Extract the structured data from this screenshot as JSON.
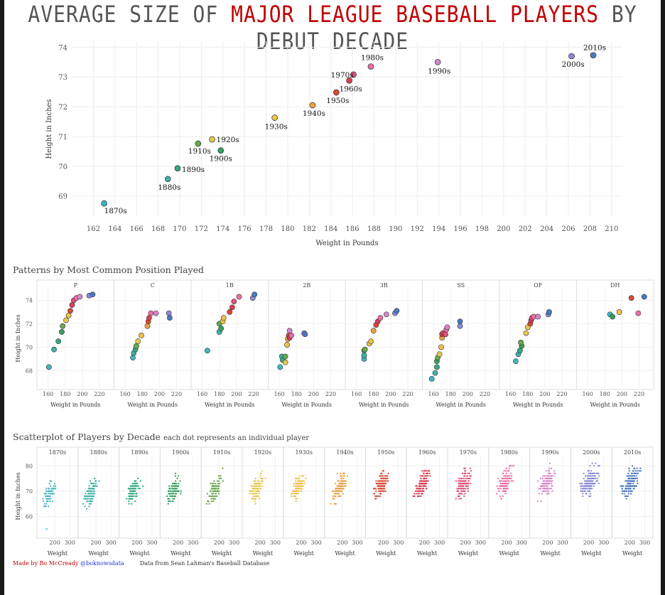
{
  "title": {
    "part1": "AVERAGE SIZE OF ",
    "part2": "MAJOR LEAGUE BASEBALL PLAYERS",
    "part3": " BY DEBUT DECADE"
  },
  "colors": {
    "1870s": "#43b4bf",
    "1880s": "#3fb0a5",
    "1890s": "#35a882",
    "1900s": "#36a160",
    "1910s": "#6aa84f",
    "1920s": "#e3c84f",
    "1930s": "#f0c04a",
    "1940s": "#eca144",
    "1950s": "#d94a37",
    "1960s": "#d93f56",
    "1970s": "#e0507a",
    "1980s": "#e870a5",
    "1990s": "#d586c6",
    "2000s": "#8a8ad6",
    "2010s": "#4c78c4"
  },
  "chart_data": [
    {
      "type": "scatter",
      "title": "Average size of major league baseball players by debut decade",
      "xlabel": "Weight in Pounds",
      "ylabel": "Height in Inches",
      "xlim": [
        160,
        211
      ],
      "ylim": [
        68.3,
        74.2
      ],
      "xticks": [
        162,
        164,
        166,
        168,
        170,
        172,
        174,
        176,
        178,
        180,
        182,
        184,
        186,
        188,
        190,
        192,
        194,
        196,
        198,
        200,
        202,
        204,
        206,
        208,
        210
      ],
      "yticks": [
        69,
        70,
        71,
        72,
        73,
        74
      ],
      "points": [
        {
          "label": "1870s",
          "x": 163.0,
          "y": 68.75
        },
        {
          "label": "1880s",
          "x": 168.9,
          "y": 69.57
        },
        {
          "label": "1890s",
          "x": 169.8,
          "y": 69.93
        },
        {
          "label": "1900s",
          "x": 173.8,
          "y": 70.53
        },
        {
          "label": "1910s",
          "x": 171.7,
          "y": 70.76
        },
        {
          "label": "1920s",
          "x": 173.0,
          "y": 70.9
        },
        {
          "label": "1930s",
          "x": 178.8,
          "y": 71.63
        },
        {
          "label": "1940s",
          "x": 182.3,
          "y": 72.05
        },
        {
          "label": "1950s",
          "x": 184.5,
          "y": 72.48
        },
        {
          "label": "1960s",
          "x": 185.7,
          "y": 72.88
        },
        {
          "label": "1970s",
          "x": 186.1,
          "y": 73.08
        },
        {
          "label": "1980s",
          "x": 187.7,
          "y": 73.35
        },
        {
          "label": "1990s",
          "x": 193.9,
          "y": 73.5
        },
        {
          "label": "2000s",
          "x": 206.3,
          "y": 73.7
        },
        {
          "label": "2010s",
          "x": 208.3,
          "y": 73.73
        }
      ]
    },
    {
      "type": "scatter",
      "title": "Patterns by Most Common Position Played",
      "xlabel": "Weight in Pounds",
      "ylabel": "Height in Inches",
      "xlim": [
        152,
        232
      ],
      "ylim": [
        66.5,
        75
      ],
      "xticks": [
        160,
        180,
        200,
        220
      ],
      "yticks": [
        68,
        70,
        72,
        74
      ],
      "panels": [
        {
          "name": "P",
          "points": [
            [
              161,
              68.3
            ],
            [
              167,
              69.8
            ],
            [
              172,
              70.5
            ],
            [
              176,
              71.3
            ],
            [
              177,
              71.8
            ],
            [
              181,
              72.3
            ],
            [
              184,
              72.7
            ],
            [
              186,
              73.1
            ],
            [
              188,
              73.6
            ],
            [
              190,
              74.0
            ],
            [
              193,
              74.2
            ],
            [
              197,
              74.3
            ],
            [
              208,
              74.4
            ],
            [
              212,
              74.5
            ]
          ]
        },
        {
          "name": "C",
          "points": [
            [
              169,
              69.1
            ],
            [
              170,
              69.5
            ],
            [
              172,
              69.8
            ],
            [
              173,
              70.1
            ],
            [
              175,
              70.5
            ],
            [
              179,
              71.0
            ],
            [
              186,
              71.8
            ],
            [
              187,
              72.2
            ],
            [
              188,
              72.5
            ],
            [
              190,
              72.9
            ],
            [
              196,
              72.9
            ],
            [
              211,
              72.9
            ],
            [
              212,
              72.5
            ]
          ]
        },
        {
          "name": "1B",
          "points": [
            [
              166,
              69.7
            ],
            [
              180,
              71.3
            ],
            [
              182,
              71.6
            ],
            [
              180,
              72.0
            ],
            [
              184,
              72.2
            ],
            [
              185,
              72.5
            ],
            [
              192,
              73.0
            ],
            [
              195,
              73.4
            ],
            [
              197,
              73.9
            ],
            [
              203,
              74.3
            ],
            [
              219,
              74.2
            ],
            [
              221,
              74.5
            ]
          ]
        },
        {
          "name": "2B",
          "points": [
            [
              161,
              68.3
            ],
            [
              163,
              69.2
            ],
            [
              164,
              68.9
            ],
            [
              167,
              69.2
            ],
            [
              167,
              68.7
            ],
            [
              169,
              70.2
            ],
            [
              170,
              70.7
            ],
            [
              171,
              71.0
            ],
            [
              172,
              70.8
            ],
            [
              174,
              71.0
            ],
            [
              172,
              71.4
            ],
            [
              189,
              71.2
            ],
            [
              190,
              71.1
            ]
          ]
        },
        {
          "name": "3B",
          "points": [
            [
              169,
              69.0
            ],
            [
              169,
              69.3
            ],
            [
              169,
              69.7
            ],
            [
              170,
              69.8
            ],
            [
              175,
              70.3
            ],
            [
              177,
              70.5
            ],
            [
              180,
              71.4
            ],
            [
              183,
              71.9
            ],
            [
              185,
              72.2
            ],
            [
              188,
              72.5
            ],
            [
              195,
              72.8
            ],
            [
              205,
              72.9
            ],
            [
              207,
              73.1
            ]
          ]
        },
        {
          "name": "SS",
          "points": [
            [
              158,
              67.3
            ],
            [
              162,
              67.8
            ],
            [
              164,
              68.3
            ],
            [
              164,
              68.8
            ],
            [
              165,
              69.1
            ],
            [
              167,
              69.4
            ],
            [
              169,
              70.0
            ],
            [
              170,
              70.8
            ],
            [
              170,
              71.1
            ],
            [
              171,
              71.2
            ],
            [
              174,
              71.1
            ],
            [
              175,
              71.5
            ],
            [
              176,
              71.7
            ],
            [
              191,
              71.8
            ],
            [
              191,
              72.2
            ]
          ]
        },
        {
          "name": "OF",
          "points": [
            [
              166,
              68.8
            ],
            [
              169,
              69.4
            ],
            [
              171,
              69.7
            ],
            [
              173,
              70.1
            ],
            [
              172,
              70.4
            ],
            [
              178,
              71.2
            ],
            [
              180,
              71.7
            ],
            [
              183,
              72.0
            ],
            [
              184,
              72.3
            ],
            [
              185,
              72.5
            ],
            [
              187,
              72.6
            ],
            [
              192,
              72.6
            ],
            [
              204,
              72.8
            ],
            [
              205,
              73.0
            ]
          ]
        },
        {
          "name": "DH",
          "points": [
            [
              186,
              72.8
            ],
            [
              189,
              72.6
            ],
            [
              197,
              73.0
            ],
            [
              211,
              74.2
            ],
            [
              219,
              72.9
            ],
            [
              226,
              74.3
            ]
          ]
        }
      ]
    },
    {
      "type": "scatter",
      "title": "Scatterplot of Players by Decade",
      "subtitle": "each dot represents an individual player",
      "xlabel": "Weight",
      "ylabel": "Height in Inches",
      "xlim": [
        95,
        340
      ],
      "ylim": [
        52,
        84
      ],
      "xticks": [
        200,
        300
      ],
      "yticks": [
        60,
        70,
        80
      ],
      "panels": [
        {
          "name": "1870s",
          "center": [
            163,
            68.8
          ],
          "spread": [
            18,
            2.2
          ],
          "n": 80,
          "outlier": [
            145,
            55
          ]
        },
        {
          "name": "1880s",
          "center": [
            169,
            69.6
          ],
          "spread": [
            20,
            2.3
          ],
          "n": 110
        },
        {
          "name": "1890s",
          "center": [
            170,
            69.9
          ],
          "spread": [
            20,
            2.3
          ],
          "n": 110
        },
        {
          "name": "1900s",
          "center": [
            174,
            70.5
          ],
          "spread": [
            20,
            2.4
          ],
          "n": 110
        },
        {
          "name": "1910s",
          "center": [
            172,
            70.8
          ],
          "spread": [
            20,
            2.5
          ],
          "n": 110
        },
        {
          "name": "1920s",
          "center": [
            173,
            70.9
          ],
          "spread": [
            20,
            2.5
          ],
          "n": 110
        },
        {
          "name": "1930s",
          "center": [
            179,
            71.6
          ],
          "spread": [
            20,
            2.5
          ],
          "n": 110
        },
        {
          "name": "1940s",
          "center": [
            182,
            72.0
          ],
          "spread": [
            21,
            2.5
          ],
          "n": 120
        },
        {
          "name": "1950s",
          "center": [
            184,
            72.5
          ],
          "spread": [
            22,
            2.6
          ],
          "n": 130
        },
        {
          "name": "1960s",
          "center": [
            186,
            72.9
          ],
          "spread": [
            22,
            2.6
          ],
          "n": 130
        },
        {
          "name": "1970s",
          "center": [
            186,
            73.1
          ],
          "spread": [
            22,
            2.6
          ],
          "n": 130
        },
        {
          "name": "1980s",
          "center": [
            188,
            73.3
          ],
          "spread": [
            22,
            2.6
          ],
          "n": 130
        },
        {
          "name": "1990s",
          "center": [
            194,
            73.5
          ],
          "spread": [
            24,
            2.6
          ],
          "n": 140
        },
        {
          "name": "2000s",
          "center": [
            206,
            73.7
          ],
          "spread": [
            28,
            2.7
          ],
          "n": 170
        },
        {
          "name": "2010s",
          "center": [
            208,
            73.7
          ],
          "spread": [
            28,
            2.7
          ],
          "n": 160
        }
      ]
    }
  ],
  "positions_title": "Patterns by Most Common Position Played",
  "decades_title": "Scatterplot of Players by Decade",
  "decades_subtitle": "each dot represents an individual player",
  "footer": {
    "credit": "Made by Bo McCready ",
    "handle": "@boknowsdata",
    "source": "Data from Sean Lahman's Baseball Database"
  }
}
